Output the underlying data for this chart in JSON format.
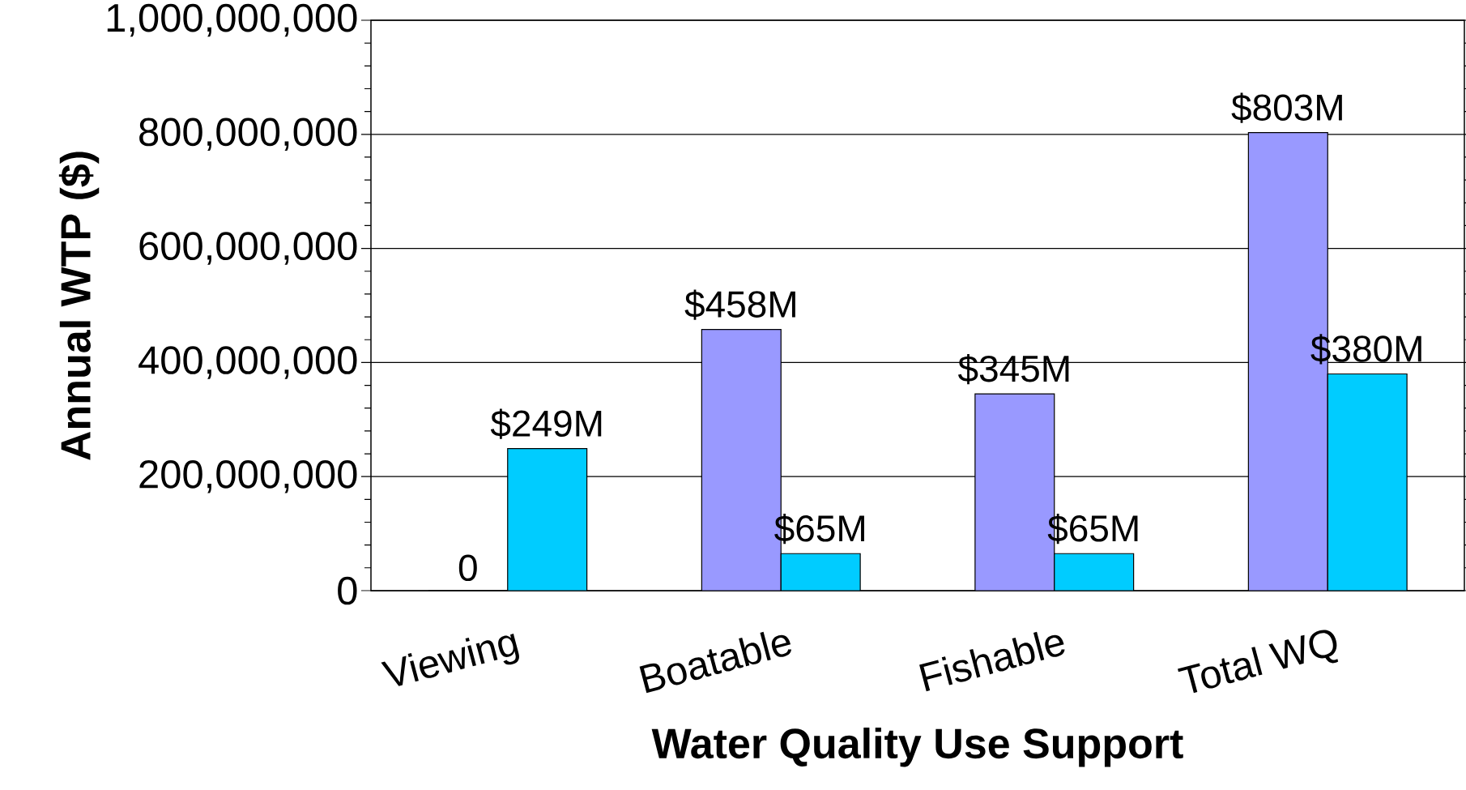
{
  "chart_data": {
    "type": "bar",
    "xlabel": "Water Quality Use Support",
    "ylabel": "Annual WTP ($)",
    "categories": [
      "Viewing",
      "Boatable",
      "Fishable",
      "Total WQ"
    ],
    "series": [
      {
        "color": "#9999ff",
        "values": [
          0,
          458000000,
          345000000,
          803000000
        ],
        "value_labels": [
          "0",
          "$458M",
          "$345M",
          "$803M"
        ]
      },
      {
        "color": "#00ccff",
        "values": [
          249000000,
          65000000,
          65000000,
          380000000
        ],
        "value_labels": [
          "$249M",
          "$65M",
          "$65M",
          "$380M"
        ]
      }
    ],
    "ylim": [
      0,
      1000000000
    ],
    "yticks": [
      {
        "value": 0,
        "label": "0"
      },
      {
        "value": 200000000,
        "label": "200,000,000"
      },
      {
        "value": 400000000,
        "label": "400,000,000"
      },
      {
        "value": 600000000,
        "label": "600,000,000"
      },
      {
        "value": 800000000,
        "label": "800,000,000"
      },
      {
        "value": 1000000000,
        "label": "1,000,000,000"
      }
    ],
    "grid": "y"
  }
}
